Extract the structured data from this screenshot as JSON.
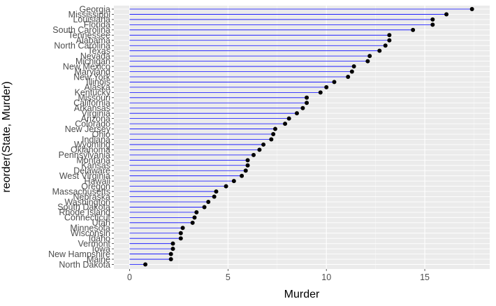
{
  "chart_data": {
    "type": "lollipop",
    "xlabel": "Murder",
    "ylabel": "reorder(State, Murder)",
    "xlim": [
      -0.8,
      18.3
    ],
    "xticks": [
      0,
      5,
      10,
      15
    ],
    "grid": true,
    "legend": "none",
    "colors": {
      "panel": "#ebebeb",
      "grid": "#ffffff",
      "segment": "#0000ff",
      "point": "#000000",
      "tick_text": "#4d4d4d"
    },
    "categories": [
      "North Dakota",
      "Maine",
      "New Hampshire",
      "Iowa",
      "Vermont",
      "Idaho",
      "Wisconsin",
      "Minnesota",
      "Utah",
      "Connecticut",
      "Rhode Island",
      "South Dakota",
      "Washington",
      "Nebraska",
      "Massachusetts",
      "Oregon",
      "Hawaii",
      "West Virginia",
      "Delaware",
      "Kansas",
      "Montana",
      "Pennsylvania",
      "Oklahoma",
      "Wyoming",
      "Indiana",
      "Ohio",
      "New Jersey",
      "Colorado",
      "Arizona",
      "Virginia",
      "Arkansas",
      "California",
      "Missouri",
      "Kentucky",
      "Alaska",
      "Illinois",
      "New York",
      "Maryland",
      "New Mexico",
      "Michigan",
      "Nevada",
      "Texas",
      "North Carolina",
      "Alabama",
      "Tennessee",
      "South Carolina",
      "Florida",
      "Louisiana",
      "Mississippi",
      "Georgia"
    ],
    "values": [
      0.8,
      2.1,
      2.1,
      2.2,
      2.2,
      2.6,
      2.6,
      2.7,
      3.2,
      3.3,
      3.4,
      3.8,
      4.0,
      4.3,
      4.4,
      4.9,
      5.3,
      5.7,
      5.9,
      6.0,
      6.0,
      6.3,
      6.6,
      6.8,
      7.2,
      7.3,
      7.4,
      7.9,
      8.1,
      8.5,
      8.8,
      9.0,
      9.0,
      9.7,
      10.0,
      10.4,
      11.1,
      11.3,
      11.4,
      12.1,
      12.2,
      12.7,
      13.0,
      13.2,
      13.2,
      14.4,
      15.4,
      15.4,
      16.1,
      17.4
    ]
  }
}
